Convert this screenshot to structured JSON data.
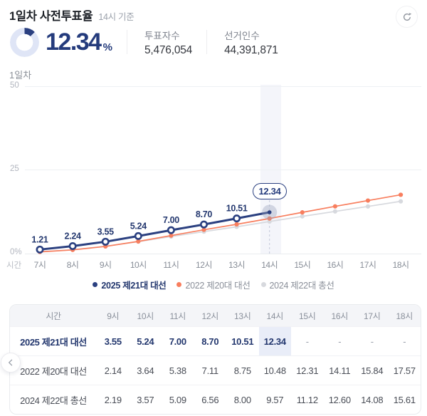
{
  "header": {
    "title": "1일차 사전투표율",
    "as_of": "14시 기준",
    "turnout": {
      "value": "12.34",
      "unit": "%"
    },
    "stats": [
      {
        "label": "투표자수",
        "value": "5,476,054"
      },
      {
        "label": "선거인수",
        "value": "44,391,871"
      }
    ]
  },
  "chart_data": {
    "type": "line",
    "title": "1일차",
    "x_label": "시간",
    "categories": [
      "7시",
      "8시",
      "9시",
      "10시",
      "11시",
      "12시",
      "13시",
      "14시",
      "15시",
      "16시",
      "17시",
      "18시"
    ],
    "y_ticks": [
      {
        "value": 50,
        "label": "50"
      },
      {
        "value": 25,
        "label": "25"
      },
      {
        "value": 0,
        "label": "0%"
      }
    ],
    "ylim": [
      0,
      50
    ],
    "grid": true,
    "legend_position": "bottom",
    "series": [
      {
        "name": "2025 제21대 대선",
        "color": "#2b4080",
        "marker": "open-circle",
        "values": [
          1.21,
          2.24,
          3.55,
          5.24,
          7.0,
          8.7,
          10.51,
          12.34
        ],
        "point_labels": [
          "1.21",
          "2.24",
          "3.55",
          "5.24",
          "7.00",
          "8.70",
          "10.51"
        ]
      },
      {
        "name": "2022 제20대 대선",
        "color": "#f87e5e",
        "marker": "dot",
        "values": [
          0.5,
          1.1,
          2.14,
          3.64,
          5.38,
          7.11,
          8.75,
          10.48,
          12.31,
          14.11,
          15.84,
          17.57
        ]
      },
      {
        "name": "2024 제22대 총선",
        "color": "#d7d9de",
        "marker": "dot",
        "values": [
          0.55,
          1.15,
          2.19,
          3.57,
          5.09,
          6.56,
          8.0,
          9.57,
          11.12,
          12.6,
          14.08,
          15.61
        ]
      }
    ],
    "highlight": {
      "category": "14시",
      "series": "2025 제21대 대선",
      "label": "12.34"
    }
  },
  "table": {
    "columns": [
      "시간",
      "9시",
      "10시",
      "11시",
      "12시",
      "13시",
      "14시",
      "15시",
      "16시",
      "17시",
      "18시"
    ],
    "highlight_column": "14시",
    "rows": [
      {
        "label": "2025 제21대 대선",
        "emphasized": true,
        "values": [
          "3.55",
          "5.24",
          "7.00",
          "8.70",
          "10.51",
          "12.34",
          "-",
          "-",
          "-",
          "-"
        ]
      },
      {
        "label": "2022 제20대 대선",
        "emphasized": false,
        "values": [
          "2.14",
          "3.64",
          "5.38",
          "7.11",
          "8.75",
          "10.48",
          "12.31",
          "14.11",
          "15.84",
          "17.57"
        ]
      },
      {
        "label": "2024 제22대 총선",
        "emphasized": false,
        "values": [
          "2.19",
          "3.57",
          "5.09",
          "6.56",
          "8.00",
          "9.57",
          "11.12",
          "12.60",
          "14.08",
          "15.61"
        ]
      }
    ]
  },
  "colors": {
    "primary_navy": "#2b4080",
    "navy_text": "#243b7c",
    "accent_orange": "#f87e5e",
    "muted_gray_line": "#d7d9de",
    "donut_track": "#dfe5f6",
    "highlight_cell_bg": "#e9edf8",
    "chart_band_bg": "#f4f5fa"
  }
}
